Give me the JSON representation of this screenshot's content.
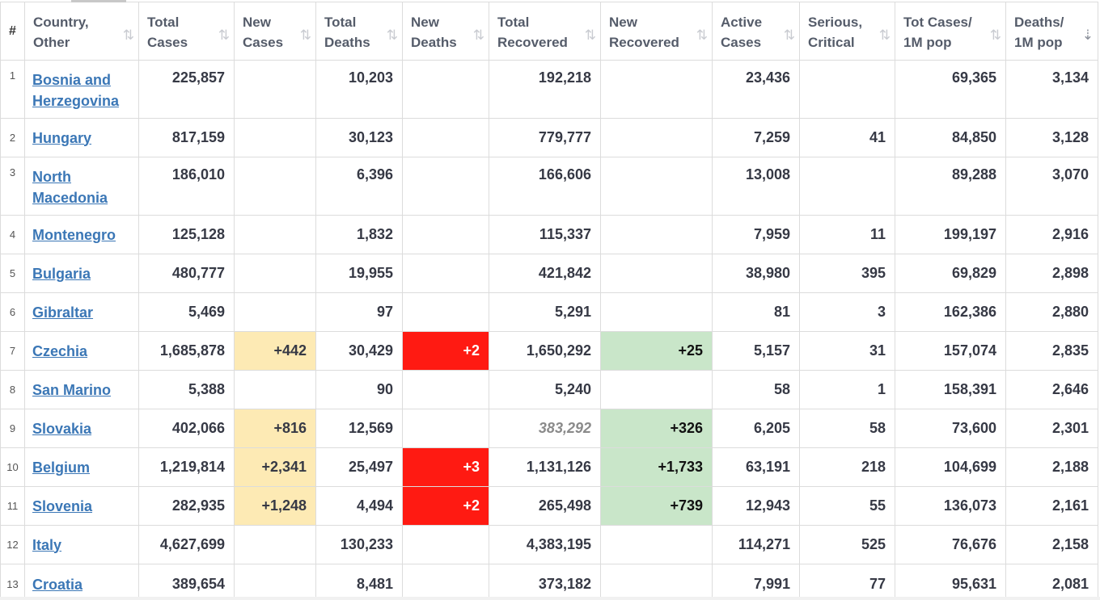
{
  "headers": [
    {
      "label": "#",
      "sortable": false
    },
    {
      "label": "Country,\nOther",
      "sortable": true
    },
    {
      "label": "Total\nCases",
      "sortable": true
    },
    {
      "label": "New\nCases",
      "sortable": true
    },
    {
      "label": "Total\nDeaths",
      "sortable": true
    },
    {
      "label": "New\nDeaths",
      "sortable": true
    },
    {
      "label": "Total\nRecovered",
      "sortable": true
    },
    {
      "label": "New\nRecovered",
      "sortable": true
    },
    {
      "label": "Active\nCases",
      "sortable": true
    },
    {
      "label": "Serious,\nCritical",
      "sortable": true
    },
    {
      "label": "Tot Cases/\n1M pop",
      "sortable": true
    },
    {
      "label": "Deaths/\n1M pop",
      "sortable": true,
      "active": true
    }
  ],
  "sort_icon": "⇅",
  "sort_icon_active": "⇣",
  "rows": [
    {
      "rank": "1",
      "country": "Bosnia and Herzegovina",
      "total_cases": "225,857",
      "new_cases": "",
      "total_deaths": "10,203",
      "new_deaths": "",
      "total_recovered": "192,218",
      "new_recovered": "",
      "active_cases": "23,436",
      "serious_critical": "",
      "tot_cases_1m": "69,365",
      "deaths_1m": "3,134"
    },
    {
      "rank": "2",
      "country": "Hungary",
      "total_cases": "817,159",
      "new_cases": "",
      "total_deaths": "30,123",
      "new_deaths": "",
      "total_recovered": "779,777",
      "new_recovered": "",
      "active_cases": "7,259",
      "serious_critical": "41",
      "tot_cases_1m": "84,850",
      "deaths_1m": "3,128"
    },
    {
      "rank": "3",
      "country": "North Macedonia",
      "total_cases": "186,010",
      "new_cases": "",
      "total_deaths": "6,396",
      "new_deaths": "",
      "total_recovered": "166,606",
      "new_recovered": "",
      "active_cases": "13,008",
      "serious_critical": "",
      "tot_cases_1m": "89,288",
      "deaths_1m": "3,070"
    },
    {
      "rank": "4",
      "country": "Montenegro",
      "total_cases": "125,128",
      "new_cases": "",
      "total_deaths": "1,832",
      "new_deaths": "",
      "total_recovered": "115,337",
      "new_recovered": "",
      "active_cases": "7,959",
      "serious_critical": "11",
      "tot_cases_1m": "199,197",
      "deaths_1m": "2,916"
    },
    {
      "rank": "5",
      "country": "Bulgaria",
      "total_cases": "480,777",
      "new_cases": "",
      "total_deaths": "19,955",
      "new_deaths": "",
      "total_recovered": "421,842",
      "new_recovered": "",
      "active_cases": "38,980",
      "serious_critical": "395",
      "tot_cases_1m": "69,829",
      "deaths_1m": "2,898"
    },
    {
      "rank": "6",
      "country": "Gibraltar",
      "total_cases": "5,469",
      "new_cases": "",
      "total_deaths": "97",
      "new_deaths": "",
      "total_recovered": "5,291",
      "new_recovered": "",
      "active_cases": "81",
      "serious_critical": "3",
      "tot_cases_1m": "162,386",
      "deaths_1m": "2,880"
    },
    {
      "rank": "7",
      "country": "Czechia",
      "total_cases": "1,685,878",
      "new_cases": "+442",
      "total_deaths": "30,429",
      "new_deaths": "+2",
      "total_recovered": "1,650,292",
      "new_recovered": "+25",
      "active_cases": "5,157",
      "serious_critical": "31",
      "tot_cases_1m": "157,074",
      "deaths_1m": "2,835"
    },
    {
      "rank": "8",
      "country": "San Marino",
      "total_cases": "5,388",
      "new_cases": "",
      "total_deaths": "90",
      "new_deaths": "",
      "total_recovered": "5,240",
      "new_recovered": "",
      "active_cases": "58",
      "serious_critical": "1",
      "tot_cases_1m": "158,391",
      "deaths_1m": "2,646"
    },
    {
      "rank": "9",
      "country": "Slovakia",
      "total_cases": "402,066",
      "new_cases": "+816",
      "total_deaths": "12,569",
      "new_deaths": "",
      "total_recovered": "383,292",
      "recovered_italic": true,
      "new_recovered": "+326",
      "active_cases": "6,205",
      "serious_critical": "58",
      "tot_cases_1m": "73,600",
      "deaths_1m": "2,301"
    },
    {
      "rank": "10",
      "country": "Belgium",
      "total_cases": "1,219,814",
      "new_cases": "+2,341",
      "total_deaths": "25,497",
      "new_deaths": "+3",
      "total_recovered": "1,131,126",
      "new_recovered": "+1,733",
      "active_cases": "63,191",
      "serious_critical": "218",
      "tot_cases_1m": "104,699",
      "deaths_1m": "2,188"
    },
    {
      "rank": "11",
      "country": "Slovenia",
      "total_cases": "282,935",
      "new_cases": "+1,248",
      "total_deaths": "4,494",
      "new_deaths": "+2",
      "total_recovered": "265,498",
      "new_recovered": "+739",
      "active_cases": "12,943",
      "serious_critical": "55",
      "tot_cases_1m": "136,073",
      "deaths_1m": "2,161"
    },
    {
      "rank": "12",
      "country": "Italy",
      "total_cases": "4,627,699",
      "new_cases": "",
      "total_deaths": "130,233",
      "new_deaths": "",
      "total_recovered": "4,383,195",
      "new_recovered": "",
      "active_cases": "114,271",
      "serious_critical": "525",
      "tot_cases_1m": "76,676",
      "deaths_1m": "2,158"
    },
    {
      "rank": "13",
      "country": "Croatia",
      "total_cases": "389,654",
      "new_cases": "",
      "total_deaths": "8,481",
      "new_deaths": "",
      "total_recovered": "373,182",
      "new_recovered": "",
      "active_cases": "7,991",
      "serious_critical": "77",
      "tot_cases_1m": "95,631",
      "deaths_1m": "2,081"
    }
  ],
  "colors": {
    "link": "#3b77b6",
    "new_cases_bg": "#fdeab4",
    "new_deaths_bg": "#ff1a12",
    "new_recovered_bg": "#c9e6c9"
  }
}
